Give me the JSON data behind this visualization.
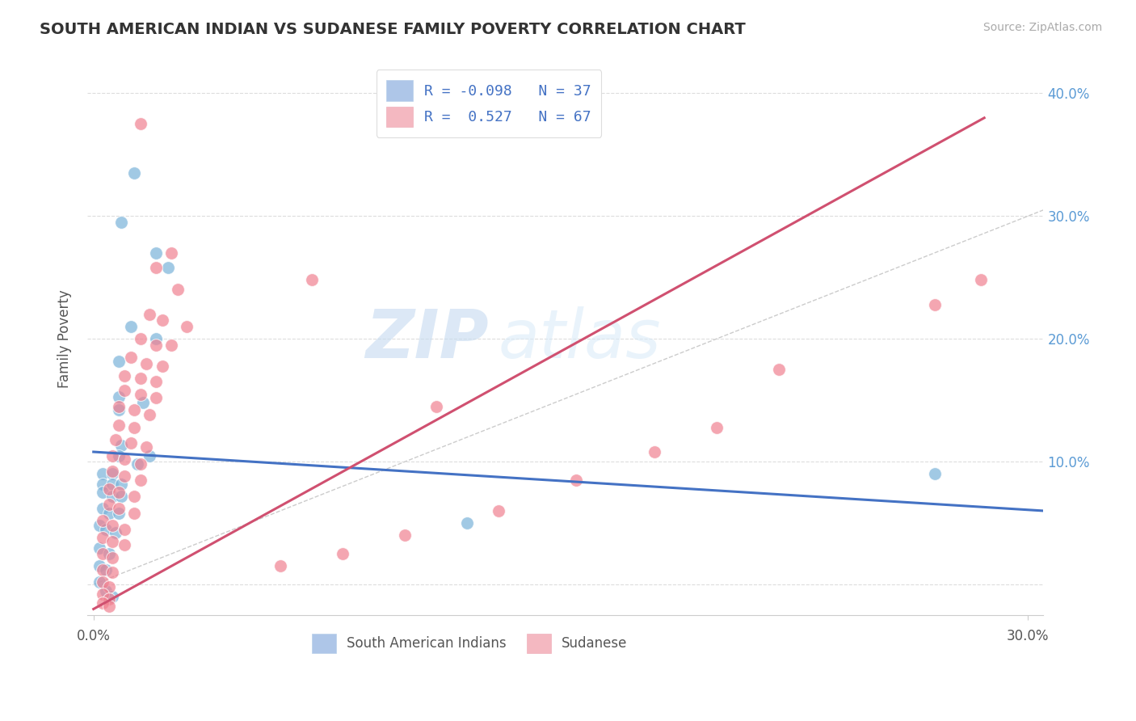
{
  "title": "SOUTH AMERICAN INDIAN VS SUDANESE FAMILY POVERTY CORRELATION CHART",
  "source": "Source: ZipAtlas.com",
  "ylabel": "Family Poverty",
  "xlim": [
    -0.002,
    0.305
  ],
  "ylim": [
    -0.025,
    0.425
  ],
  "xticks": [
    0.0,
    0.3
  ],
  "xticklabels": [
    "0.0%",
    "30.0%"
  ],
  "yticks": [
    0.0,
    0.1,
    0.2,
    0.3,
    0.4
  ],
  "yticklabels": [
    "",
    "10.0%",
    "20.0%",
    "30.0%",
    "40.0%"
  ],
  "legend_entries": [
    {
      "label": "R = -0.098   N = 37",
      "color": "#aec6e8"
    },
    {
      "label": "R =  0.527   N = 67",
      "color": "#f4b8c1"
    }
  ],
  "blue_scatter": [
    [
      0.013,
      0.335
    ],
    [
      0.02,
      0.27
    ],
    [
      0.024,
      0.258
    ],
    [
      0.009,
      0.295
    ],
    [
      0.012,
      0.21
    ],
    [
      0.02,
      0.2
    ],
    [
      0.008,
      0.182
    ],
    [
      0.008,
      0.153
    ],
    [
      0.016,
      0.148
    ],
    [
      0.008,
      0.142
    ],
    [
      0.009,
      0.113
    ],
    [
      0.008,
      0.105
    ],
    [
      0.018,
      0.105
    ],
    [
      0.014,
      0.098
    ],
    [
      0.003,
      0.09
    ],
    [
      0.006,
      0.09
    ],
    [
      0.003,
      0.082
    ],
    [
      0.006,
      0.082
    ],
    [
      0.009,
      0.082
    ],
    [
      0.003,
      0.075
    ],
    [
      0.006,
      0.072
    ],
    [
      0.009,
      0.072
    ],
    [
      0.003,
      0.062
    ],
    [
      0.005,
      0.058
    ],
    [
      0.008,
      0.058
    ],
    [
      0.002,
      0.048
    ],
    [
      0.004,
      0.045
    ],
    [
      0.007,
      0.042
    ],
    [
      0.002,
      0.03
    ],
    [
      0.005,
      0.025
    ],
    [
      0.002,
      0.015
    ],
    [
      0.004,
      0.012
    ],
    [
      0.002,
      0.002
    ],
    [
      0.004,
      -0.005
    ],
    [
      0.006,
      -0.01
    ],
    [
      0.27,
      0.09
    ],
    [
      0.12,
      0.05
    ]
  ],
  "pink_scatter": [
    [
      0.015,
      0.375
    ],
    [
      0.025,
      0.27
    ],
    [
      0.02,
      0.258
    ],
    [
      0.027,
      0.24
    ],
    [
      0.018,
      0.22
    ],
    [
      0.022,
      0.215
    ],
    [
      0.03,
      0.21
    ],
    [
      0.015,
      0.2
    ],
    [
      0.02,
      0.195
    ],
    [
      0.025,
      0.195
    ],
    [
      0.012,
      0.185
    ],
    [
      0.017,
      0.18
    ],
    [
      0.022,
      0.178
    ],
    [
      0.01,
      0.17
    ],
    [
      0.015,
      0.168
    ],
    [
      0.02,
      0.165
    ],
    [
      0.01,
      0.158
    ],
    [
      0.015,
      0.155
    ],
    [
      0.02,
      0.152
    ],
    [
      0.008,
      0.145
    ],
    [
      0.013,
      0.142
    ],
    [
      0.018,
      0.138
    ],
    [
      0.008,
      0.13
    ],
    [
      0.013,
      0.128
    ],
    [
      0.007,
      0.118
    ],
    [
      0.012,
      0.115
    ],
    [
      0.017,
      0.112
    ],
    [
      0.006,
      0.105
    ],
    [
      0.01,
      0.102
    ],
    [
      0.015,
      0.098
    ],
    [
      0.006,
      0.092
    ],
    [
      0.01,
      0.088
    ],
    [
      0.015,
      0.085
    ],
    [
      0.005,
      0.078
    ],
    [
      0.008,
      0.075
    ],
    [
      0.013,
      0.072
    ],
    [
      0.005,
      0.065
    ],
    [
      0.008,
      0.062
    ],
    [
      0.013,
      0.058
    ],
    [
      0.003,
      0.052
    ],
    [
      0.006,
      0.048
    ],
    [
      0.01,
      0.045
    ],
    [
      0.003,
      0.038
    ],
    [
      0.006,
      0.035
    ],
    [
      0.01,
      0.032
    ],
    [
      0.003,
      0.025
    ],
    [
      0.006,
      0.022
    ],
    [
      0.003,
      0.012
    ],
    [
      0.006,
      0.01
    ],
    [
      0.003,
      0.002
    ],
    [
      0.005,
      -0.002
    ],
    [
      0.003,
      -0.008
    ],
    [
      0.005,
      -0.012
    ],
    [
      0.003,
      -0.015
    ],
    [
      0.005,
      -0.018
    ],
    [
      0.06,
      0.015
    ],
    [
      0.08,
      0.025
    ],
    [
      0.1,
      0.04
    ],
    [
      0.13,
      0.06
    ],
    [
      0.155,
      0.085
    ],
    [
      0.18,
      0.108
    ],
    [
      0.2,
      0.128
    ],
    [
      0.22,
      0.175
    ],
    [
      0.27,
      0.228
    ],
    [
      0.285,
      0.248
    ],
    [
      0.07,
      0.248
    ],
    [
      0.11,
      0.145
    ]
  ],
  "blue_line": {
    "x": [
      0.0,
      0.305
    ],
    "y": [
      0.108,
      0.06
    ]
  },
  "pink_line": {
    "x": [
      0.0,
      0.286
    ],
    "y": [
      -0.02,
      0.38
    ]
  },
  "ref_line": {
    "x": [
      0.0,
      0.305
    ],
    "y": [
      0.0,
      0.305
    ]
  },
  "title_color": "#333333",
  "blue_color": "#7ab3d9",
  "pink_color": "#f08090",
  "blue_line_color": "#4472c4",
  "pink_line_color": "#d05070",
  "ref_line_color": "#cccccc",
  "watermark_zip": "ZIP",
  "watermark_atlas": "atlas",
  "background_color": "#ffffff",
  "grid_color": "#dddddd"
}
